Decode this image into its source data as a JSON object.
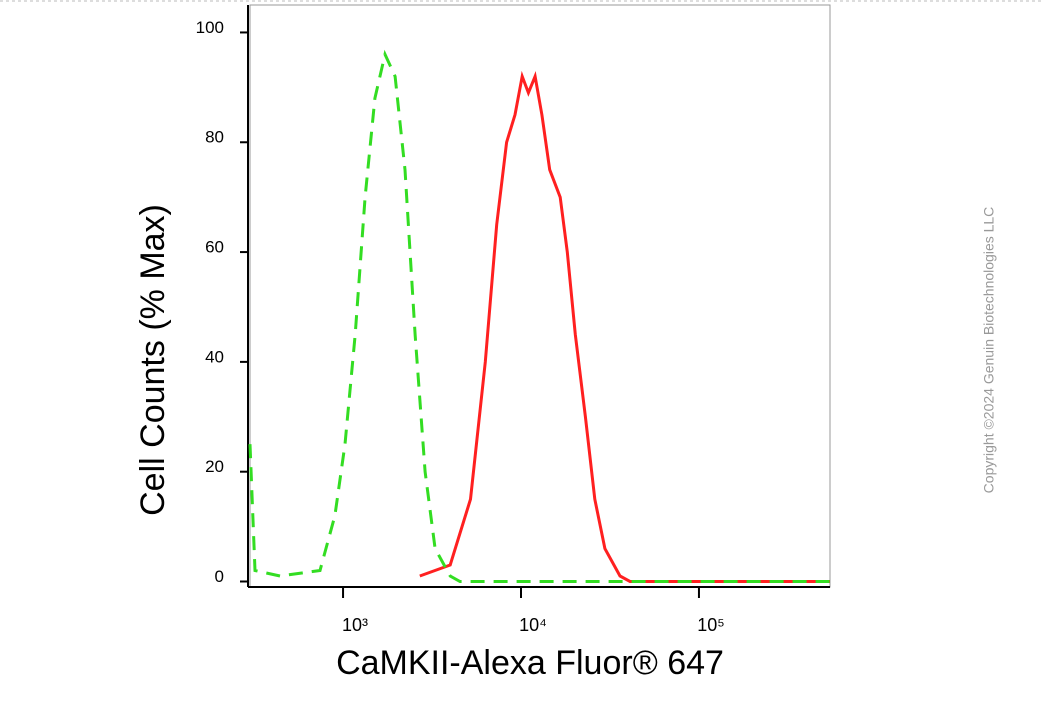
{
  "chart_data": {
    "type": "line",
    "x_label": "CaMKII-Alexa Fluor® 647",
    "y_label": "Cell Counts (% Max)",
    "copyright": "Copyright ©2024 Genuin Biotechnologies LLC",
    "xscale": "log",
    "xlim": [
      300,
      545000
    ],
    "ylim": [
      -1,
      105
    ],
    "xticks": [
      {
        "value": 1000,
        "label": "10³"
      },
      {
        "value": 10000,
        "label": "10⁴"
      },
      {
        "value": 100000,
        "label": "10⁵"
      }
    ],
    "yticks": [
      0,
      20,
      40,
      60,
      80,
      100
    ],
    "series": [
      {
        "color": "#ff2020",
        "dash": false,
        "x": [
          2700,
          4000,
          5200,
          6300,
          7300,
          8300,
          9250,
          10150,
          11000,
          12000,
          13100,
          14500,
          16600,
          18200,
          20200,
          23000,
          26000,
          29600,
          36000,
          41000,
          545000
        ],
        "values": [
          1,
          3,
          15,
          40,
          65,
          80,
          85,
          92,
          89,
          92,
          85,
          75,
          70,
          60,
          45,
          30,
          15,
          6,
          1,
          0,
          0
        ]
      },
      {
        "color": "#33dd22",
        "dash": true,
        "x": [
          300,
          320,
          443,
          742,
          900,
          1026,
          1170,
          1330,
          1510,
          1720,
          1960,
          2230,
          2540,
          2890,
          3290,
          4000,
          4540,
          545000
        ],
        "values": [
          25,
          2,
          1,
          2,
          12,
          25,
          45,
          70,
          88,
          96,
          92,
          75,
          45,
          20,
          6,
          1,
          0,
          0
        ]
      }
    ]
  }
}
